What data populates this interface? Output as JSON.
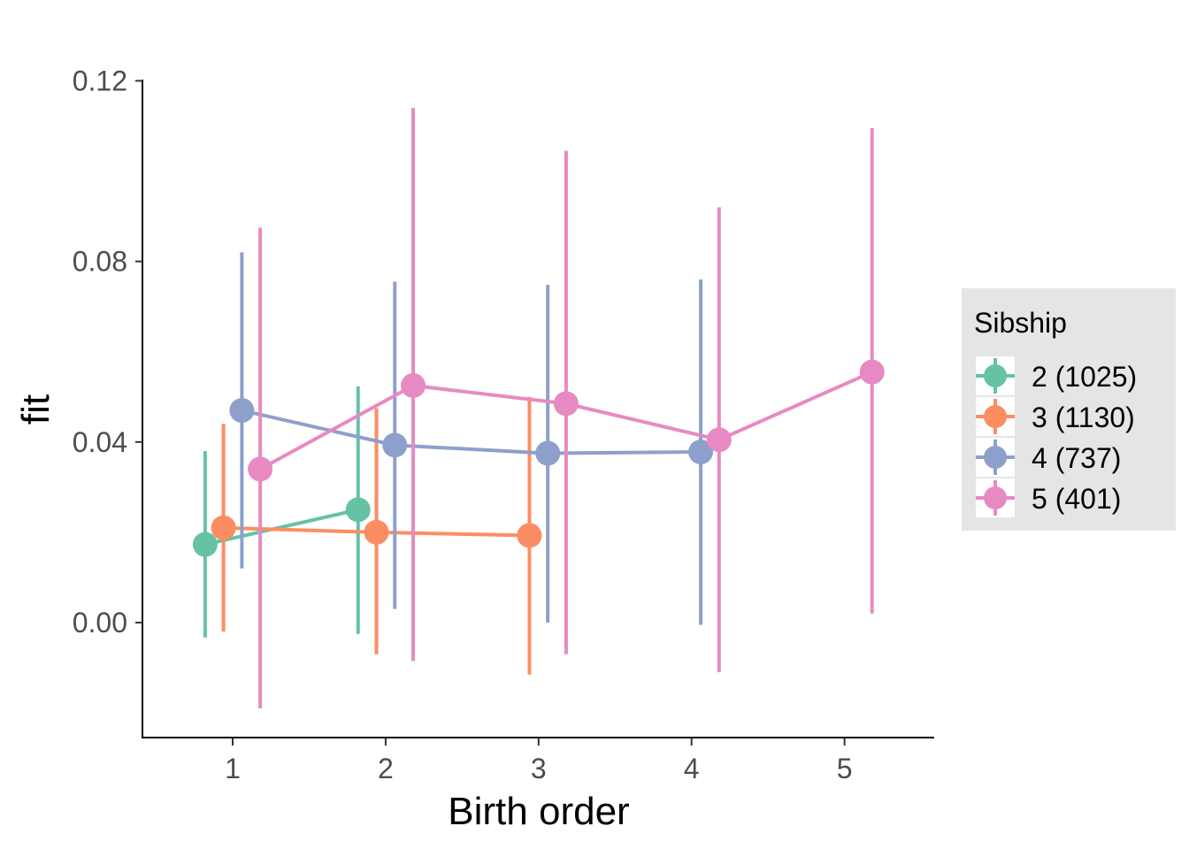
{
  "chart_data": {
    "type": "line",
    "xlabel": "Birth order",
    "ylabel": "fit",
    "x_ticks": [
      "1",
      "2",
      "3",
      "4",
      "5"
    ],
    "y_ticks": [
      "0.00",
      "0.04",
      "0.08",
      "0.12"
    ],
    "xlim": [
      0.4,
      5.6
    ],
    "ylim": [
      -0.025,
      0.12
    ],
    "grid": false,
    "legend": {
      "title": "Sibship",
      "position": "right"
    },
    "series": [
      {
        "name": "2 (1025)",
        "color": "#66c2a5",
        "points": [
          {
            "x": 1,
            "y": 0.0173,
            "lower": -0.0033,
            "upper": 0.038
          },
          {
            "x": 2,
            "y": 0.025,
            "lower": -0.0025,
            "upper": 0.0523
          }
        ]
      },
      {
        "name": "3 (1130)",
        "color": "#fc8d62",
        "points": [
          {
            "x": 1,
            "y": 0.021,
            "lower": -0.002,
            "upper": 0.044
          },
          {
            "x": 2,
            "y": 0.02,
            "lower": -0.007,
            "upper": 0.0475
          },
          {
            "x": 3,
            "y": 0.0193,
            "lower": -0.0115,
            "upper": 0.05
          }
        ]
      },
      {
        "name": "4 (737)",
        "color": "#8da0cb",
        "points": [
          {
            "x": 1,
            "y": 0.047,
            "lower": 0.012,
            "upper": 0.082
          },
          {
            "x": 2,
            "y": 0.0393,
            "lower": 0.003,
            "upper": 0.0755
          },
          {
            "x": 3,
            "y": 0.0375,
            "lower": 0.0,
            "upper": 0.0748
          },
          {
            "x": 4,
            "y": 0.0378,
            "lower": -0.0005,
            "upper": 0.076
          }
        ]
      },
      {
        "name": "5 (401)",
        "color": "#e78ac3",
        "points": [
          {
            "x": 1,
            "y": 0.034,
            "lower": -0.019,
            "upper": 0.0875
          },
          {
            "x": 2,
            "y": 0.0525,
            "lower": -0.0085,
            "upper": 0.114
          },
          {
            "x": 3,
            "y": 0.0485,
            "lower": -0.007,
            "upper": 0.1045
          },
          {
            "x": 4,
            "y": 0.0405,
            "lower": -0.011,
            "upper": 0.092
          },
          {
            "x": 5,
            "y": 0.0555,
            "lower": 0.002,
            "upper": 0.1095
          }
        ]
      }
    ]
  }
}
